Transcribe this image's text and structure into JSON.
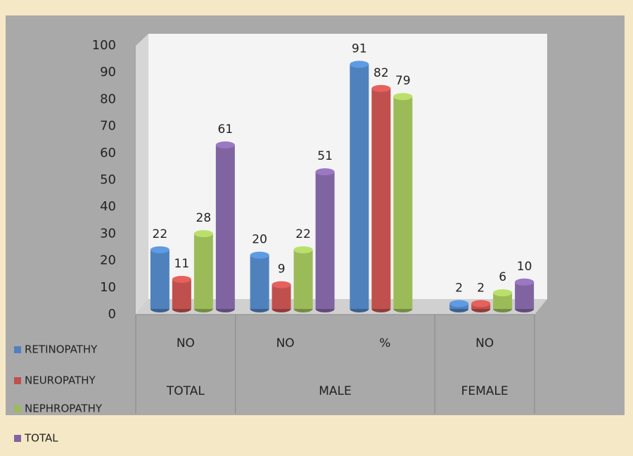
{
  "chart_data": {
    "type": "bar3d",
    "categories": [
      "NO",
      "NO",
      "%",
      "NO"
    ],
    "groups": [
      {
        "name": "TOTAL",
        "count": 1
      },
      {
        "name": "MALE",
        "count": 2
      },
      {
        "name": "FEMALE",
        "count": 1
      }
    ],
    "series": [
      {
        "name": "RETINOPATHY",
        "color": "#4f81bd",
        "values": [
          22,
          20,
          91,
          2
        ]
      },
      {
        "name": "NEUROPATHY",
        "color": "#c0504d",
        "values": [
          11,
          9,
          82,
          2
        ]
      },
      {
        "name": "NEPHROPATHY",
        "color": "#9bbb59",
        "values": [
          28,
          22,
          79,
          6
        ]
      },
      {
        "name": "TOTAL",
        "color": "#8064a2",
        "values": [
          61,
          51,
          null,
          10
        ]
      }
    ],
    "ylim": [
      0,
      100
    ],
    "yticks": [
      0,
      10,
      20,
      30,
      40,
      50,
      60,
      70,
      80,
      90,
      100
    ],
    "legend": "bottom-left"
  }
}
